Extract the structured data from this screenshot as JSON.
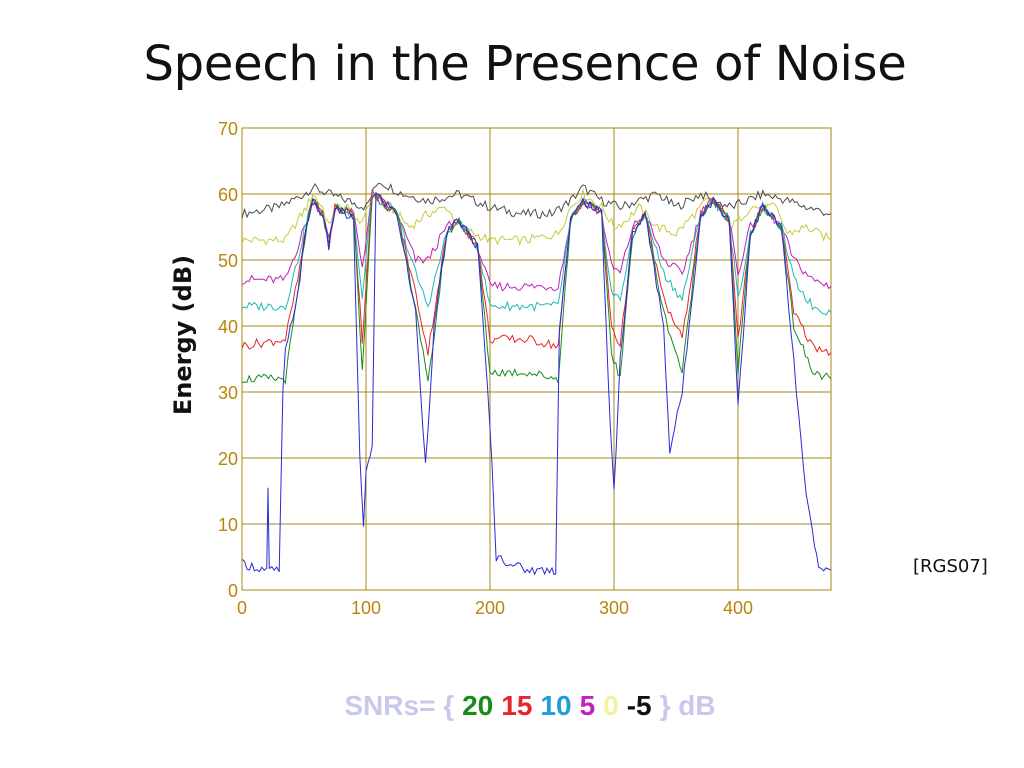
{
  "slide": {
    "title": "Speech in the Presence of Noise",
    "citation": "[RGS07]"
  },
  "legend": {
    "prefix": "SNRs= {",
    "suffix": "} dB",
    "items": [
      {
        "label": "20",
        "color": "#1a8a1a"
      },
      {
        "label": "15",
        "color": "#e8252a"
      },
      {
        "label": "10",
        "color": "#1e9fd8"
      },
      {
        "label": "5",
        "color": "#c020c0"
      },
      {
        "label": "0",
        "color": "#f2f2a0"
      },
      {
        "label": "-5",
        "color": "#111111"
      }
    ]
  },
  "chart_data": {
    "type": "line",
    "title": "",
    "xlabel": "",
    "ylabel": "Energy (dB)",
    "xlim": [
      0,
      475
    ],
    "ylim": [
      0,
      70
    ],
    "xticks": [
      0,
      100,
      200,
      300,
      400
    ],
    "yticks": [
      0,
      10,
      20,
      30,
      40,
      50,
      60,
      70
    ],
    "grid": true,
    "colors": {
      "grid": "#a08a1a",
      "tick_text": "#b8860b"
    },
    "series": [
      {
        "color": "#4b4b4b",
        "points": [
          [
            0,
            57
          ],
          [
            30,
            58
          ],
          [
            50,
            60
          ],
          [
            57,
            61
          ],
          [
            70,
            60
          ],
          [
            85,
            59
          ],
          [
            100,
            58
          ],
          [
            110,
            62
          ],
          [
            130,
            60
          ],
          [
            150,
            59
          ],
          [
            175,
            60
          ],
          [
            200,
            58
          ],
          [
            225,
            57
          ],
          [
            250,
            57
          ],
          [
            265,
            59
          ],
          [
            275,
            61
          ],
          [
            290,
            59
          ],
          [
            305,
            58
          ],
          [
            320,
            59
          ],
          [
            335,
            60
          ],
          [
            350,
            58
          ],
          [
            370,
            60
          ],
          [
            380,
            59
          ],
          [
            395,
            58
          ],
          [
            420,
            60
          ],
          [
            440,
            59
          ],
          [
            455,
            58
          ],
          [
            475,
            57
          ]
        ]
      },
      {
        "color": "#c8c83a",
        "points": [
          [
            0,
            53
          ],
          [
            35,
            53
          ],
          [
            45,
            56
          ],
          [
            52,
            58
          ],
          [
            57,
            60
          ],
          [
            65,
            58
          ],
          [
            70,
            55
          ],
          [
            75,
            58
          ],
          [
            85,
            58
          ],
          [
            95,
            55
          ],
          [
            105,
            60
          ],
          [
            120,
            58
          ],
          [
            135,
            55
          ],
          [
            150,
            57
          ],
          [
            165,
            58
          ],
          [
            175,
            55
          ],
          [
            200,
            53
          ],
          [
            230,
            53
          ],
          [
            255,
            54
          ],
          [
            265,
            58
          ],
          [
            275,
            60
          ],
          [
            290,
            58
          ],
          [
            300,
            55
          ],
          [
            310,
            56
          ],
          [
            320,
            58
          ],
          [
            335,
            55
          ],
          [
            350,
            54
          ],
          [
            365,
            57
          ],
          [
            375,
            59
          ],
          [
            385,
            58
          ],
          [
            395,
            55
          ],
          [
            410,
            58
          ],
          [
            430,
            58
          ],
          [
            440,
            54
          ],
          [
            455,
            55
          ],
          [
            475,
            53
          ]
        ]
      },
      {
        "color": "#c020c0",
        "points": [
          [
            0,
            47
          ],
          [
            35,
            47
          ],
          [
            45,
            52
          ],
          [
            52,
            56
          ],
          [
            57,
            59
          ],
          [
            65,
            57
          ],
          [
            70,
            53
          ],
          [
            75,
            58
          ],
          [
            90,
            57
          ],
          [
            97,
            49
          ],
          [
            105,
            60
          ],
          [
            125,
            57
          ],
          [
            140,
            50
          ],
          [
            150,
            50
          ],
          [
            165,
            55
          ],
          [
            175,
            56
          ],
          [
            190,
            52
          ],
          [
            200,
            46
          ],
          [
            230,
            46
          ],
          [
            255,
            46
          ],
          [
            265,
            56
          ],
          [
            275,
            59
          ],
          [
            290,
            57
          ],
          [
            298,
            49
          ],
          [
            305,
            48
          ],
          [
            315,
            55
          ],
          [
            325,
            57
          ],
          [
            340,
            50
          ],
          [
            355,
            48
          ],
          [
            370,
            57
          ],
          [
            380,
            59
          ],
          [
            393,
            56
          ],
          [
            400,
            48
          ],
          [
            410,
            55
          ],
          [
            420,
            58
          ],
          [
            435,
            55
          ],
          [
            445,
            50
          ],
          [
            460,
            47
          ],
          [
            475,
            46
          ]
        ]
      },
      {
        "color": "#20b8b8",
        "points": [
          [
            0,
            43
          ],
          [
            35,
            43
          ],
          [
            45,
            50
          ],
          [
            52,
            56
          ],
          [
            57,
            59
          ],
          [
            65,
            57
          ],
          [
            70,
            52
          ],
          [
            75,
            58
          ],
          [
            90,
            57
          ],
          [
            97,
            44
          ],
          [
            105,
            60
          ],
          [
            125,
            57
          ],
          [
            140,
            48
          ],
          [
            150,
            43
          ],
          [
            165,
            54
          ],
          [
            175,
            56
          ],
          [
            190,
            52
          ],
          [
            200,
            43
          ],
          [
            230,
            43
          ],
          [
            255,
            43
          ],
          [
            265,
            56
          ],
          [
            275,
            59
          ],
          [
            290,
            57
          ],
          [
            298,
            45
          ],
          [
            305,
            44
          ],
          [
            315,
            54
          ],
          [
            325,
            57
          ],
          [
            340,
            48
          ],
          [
            355,
            44
          ],
          [
            370,
            57
          ],
          [
            380,
            59
          ],
          [
            393,
            56
          ],
          [
            400,
            44
          ],
          [
            410,
            54
          ],
          [
            420,
            58
          ],
          [
            435,
            55
          ],
          [
            445,
            47
          ],
          [
            460,
            43
          ],
          [
            475,
            42
          ]
        ]
      },
      {
        "color": "#e8252a",
        "points": [
          [
            0,
            37
          ],
          [
            35,
            38
          ],
          [
            45,
            47
          ],
          [
            52,
            55
          ],
          [
            57,
            59
          ],
          [
            65,
            57
          ],
          [
            70,
            52
          ],
          [
            75,
            58
          ],
          [
            90,
            57
          ],
          [
            97,
            38
          ],
          [
            105,
            60
          ],
          [
            125,
            57
          ],
          [
            140,
            45
          ],
          [
            150,
            36
          ],
          [
            165,
            54
          ],
          [
            175,
            56
          ],
          [
            190,
            52
          ],
          [
            200,
            38
          ],
          [
            230,
            38
          ],
          [
            255,
            37
          ],
          [
            265,
            56
          ],
          [
            275,
            59
          ],
          [
            290,
            57
          ],
          [
            298,
            40
          ],
          [
            305,
            37
          ],
          [
            315,
            54
          ],
          [
            325,
            57
          ],
          [
            340,
            44
          ],
          [
            355,
            38
          ],
          [
            370,
            57
          ],
          [
            380,
            59
          ],
          [
            393,
            56
          ],
          [
            400,
            38
          ],
          [
            410,
            54
          ],
          [
            420,
            58
          ],
          [
            435,
            55
          ],
          [
            445,
            42
          ],
          [
            460,
            37
          ],
          [
            475,
            36
          ]
        ]
      },
      {
        "color": "#1a8a1a",
        "points": [
          [
            0,
            32
          ],
          [
            35,
            32
          ],
          [
            45,
            45
          ],
          [
            52,
            55
          ],
          [
            57,
            59
          ],
          [
            65,
            57
          ],
          [
            70,
            52
          ],
          [
            75,
            58
          ],
          [
            90,
            57
          ],
          [
            97,
            33
          ],
          [
            105,
            60
          ],
          [
            125,
            57
          ],
          [
            140,
            43
          ],
          [
            150,
            31
          ],
          [
            165,
            54
          ],
          [
            175,
            56
          ],
          [
            190,
            52
          ],
          [
            200,
            33
          ],
          [
            230,
            33
          ],
          [
            255,
            32
          ],
          [
            265,
            56
          ],
          [
            275,
            59
          ],
          [
            290,
            57
          ],
          [
            298,
            36
          ],
          [
            305,
            32
          ],
          [
            315,
            54
          ],
          [
            325,
            57
          ],
          [
            340,
            42
          ],
          [
            355,
            33
          ],
          [
            370,
            57
          ],
          [
            380,
            59
          ],
          [
            393,
            56
          ],
          [
            400,
            33
          ],
          [
            410,
            54
          ],
          [
            420,
            58
          ],
          [
            435,
            55
          ],
          [
            445,
            40
          ],
          [
            460,
            33
          ],
          [
            475,
            32
          ]
        ]
      },
      {
        "color": "#2a2ad8",
        "points": [
          [
            0,
            4
          ],
          [
            20,
            3
          ],
          [
            21,
            15
          ],
          [
            22,
            3
          ],
          [
            30,
            3
          ],
          [
            33,
            30
          ],
          [
            35,
            36
          ],
          [
            45,
            45
          ],
          [
            52,
            55
          ],
          [
            57,
            59
          ],
          [
            65,
            57
          ],
          [
            70,
            52
          ],
          [
            75,
            58
          ],
          [
            90,
            56
          ],
          [
            95,
            20
          ],
          [
            98,
            9
          ],
          [
            100,
            18
          ],
          [
            105,
            22
          ],
          [
            108,
            60
          ],
          [
            125,
            57
          ],
          [
            140,
            42
          ],
          [
            148,
            19
          ],
          [
            155,
            40
          ],
          [
            165,
            54
          ],
          [
            175,
            56
          ],
          [
            190,
            52
          ],
          [
            200,
            25
          ],
          [
            205,
            5
          ],
          [
            230,
            3
          ],
          [
            250,
            3
          ],
          [
            253,
            3
          ],
          [
            256,
            40
          ],
          [
            265,
            56
          ],
          [
            275,
            59
          ],
          [
            290,
            57
          ],
          [
            297,
            25
          ],
          [
            300,
            15
          ],
          [
            305,
            35
          ],
          [
            315,
            54
          ],
          [
            325,
            57
          ],
          [
            340,
            40
          ],
          [
            345,
            21
          ],
          [
            355,
            30
          ],
          [
            370,
            57
          ],
          [
            380,
            59
          ],
          [
            393,
            56
          ],
          [
            400,
            28
          ],
          [
            410,
            54
          ],
          [
            420,
            58
          ],
          [
            435,
            55
          ],
          [
            455,
            14
          ],
          [
            460,
            9
          ],
          [
            465,
            3
          ],
          [
            475,
            3
          ]
        ]
      }
    ]
  }
}
